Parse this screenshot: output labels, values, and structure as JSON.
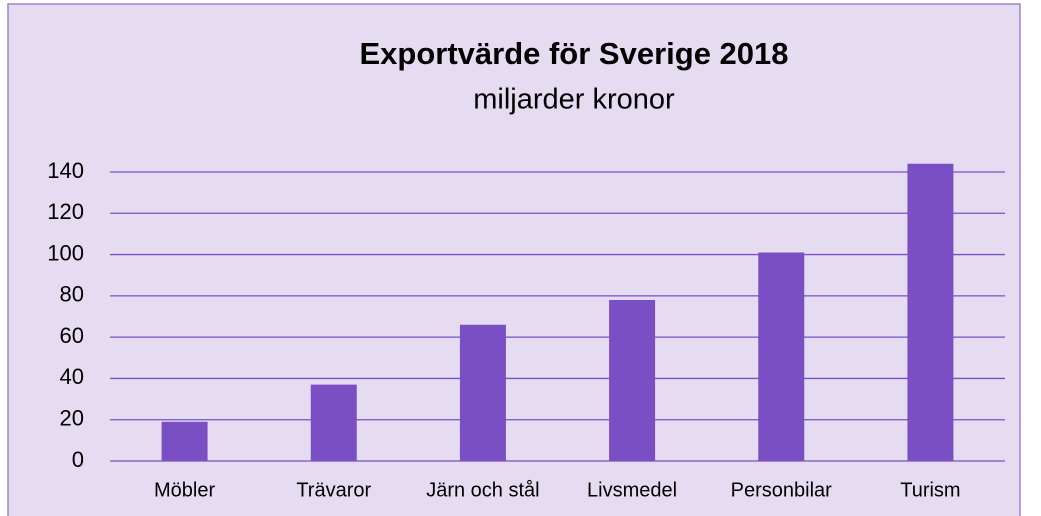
{
  "chart_data": {
    "type": "bar",
    "title": "Exportvärde för Sverige 2018",
    "subtitle": "miljarder kronor",
    "categories": [
      "Möbler",
      "Trävaror",
      "Järn och stål",
      "Livsmedel",
      "Personbilar",
      "Turism"
    ],
    "values": [
      19,
      37,
      66,
      78,
      101,
      144
    ],
    "color": "#7b4fc4",
    "ylim": [
      0,
      140
    ],
    "yticks": [
      0,
      20,
      40,
      60,
      80,
      100,
      120,
      140
    ],
    "grid": true
  }
}
